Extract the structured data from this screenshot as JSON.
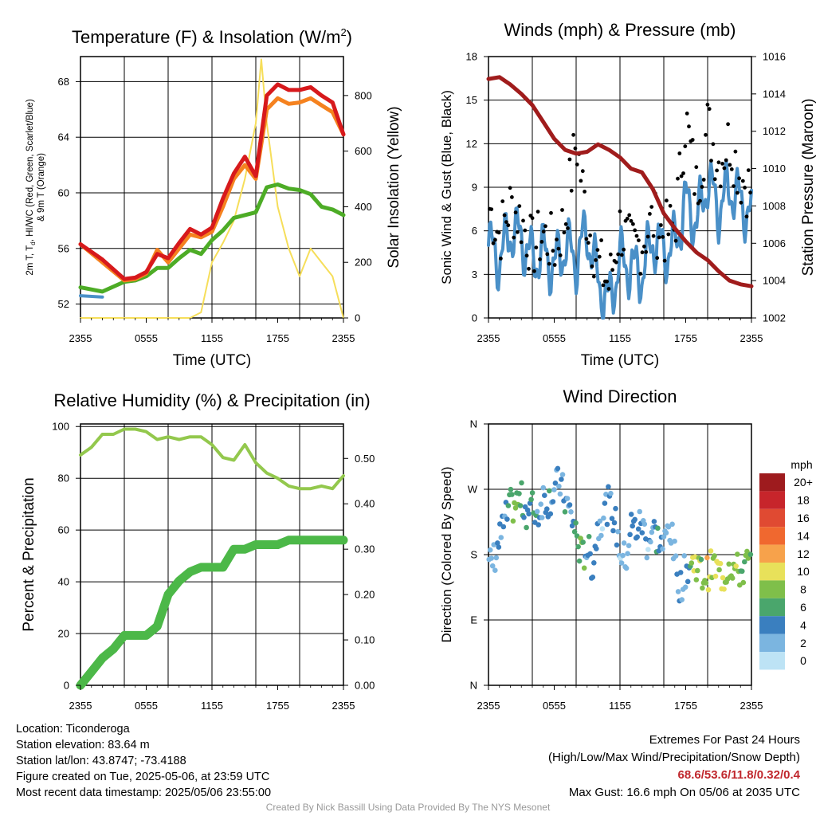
{
  "chart_data": [
    {
      "type": "line",
      "title_main": "Temperature (F) & Insolation (W/m",
      "title_sup": "2",
      "title_close": ")",
      "xlabel": "Time (UTC)",
      "ylabel_line1": "2m T, T",
      "ylabel_sub": "d",
      "ylabel_line1b": ", HI/WC (Red, Green, Scarlet/Blue)",
      "ylabel_line2": "& 9m T (Orange)",
      "y2label": "Solar Insolation (Yellow)",
      "x_ticks": [
        "2355",
        "0555",
        "1155",
        "1755",
        "2355"
      ],
      "y_ticks": [
        "52",
        "56",
        "60",
        "64",
        "68"
      ],
      "y2_ticks": [
        "0",
        "200",
        "400",
        "600",
        "800"
      ],
      "ylim": [
        51,
        69.8
      ],
      "y2lim": [
        0,
        940
      ],
      "x_hours": [
        0,
        2,
        4,
        5,
        6,
        7,
        8,
        9,
        10,
        11,
        12,
        13,
        14,
        15,
        16,
        17,
        18,
        19,
        20,
        21,
        22,
        23,
        24
      ],
      "series": [
        {
          "color": "#d7191c",
          "values": [
            56.3,
            55.2,
            53.8,
            53.9,
            54.3,
            55.6,
            55.3,
            56.4,
            57.4,
            57.0,
            57.5,
            59.6,
            61.4,
            62.6,
            61.2,
            67.0,
            67.8,
            67.4,
            67.4,
            67.6,
            67.0,
            66.5,
            64.2
          ]
        },
        {
          "color": "#f5821f",
          "values": [
            56.3,
            55.0,
            53.7,
            53.8,
            54.2,
            55.9,
            55.0,
            56.0,
            57.0,
            56.8,
            57.2,
            59.0,
            61.0,
            62.0,
            61.0,
            66.0,
            66.8,
            66.4,
            66.5,
            66.8,
            66.3,
            65.8,
            64.2
          ]
        },
        {
          "color": "#4dac26",
          "values": [
            53.2,
            52.9,
            53.6,
            53.7,
            54.0,
            54.6,
            54.6,
            55.3,
            55.9,
            55.6,
            56.6,
            57.3,
            58.2,
            58.4,
            58.6,
            60.4,
            60.6,
            60.3,
            60.2,
            59.9,
            59.0,
            58.8,
            58.4
          ]
        },
        {
          "color": "#4a90c8",
          "values": [
            52.6,
            52.5,
            null,
            null,
            null,
            null,
            null,
            null,
            null,
            null,
            null,
            null,
            null,
            null,
            null,
            null,
            null,
            null,
            null,
            null,
            null,
            null,
            null
          ]
        }
      ],
      "insolation": {
        "color": "#f6de5a",
        "x_hours": [
          0,
          4,
          8,
          10,
          11,
          12,
          13,
          14,
          15,
          16,
          16.5,
          17,
          18,
          19,
          20,
          21,
          22,
          23,
          24
        ],
        "values": [
          0,
          0,
          0,
          0,
          20,
          200,
          270,
          350,
          500,
          700,
          930,
          700,
          400,
          250,
          150,
          250,
          200,
          150,
          0
        ]
      }
    },
    {
      "type": "scatter",
      "title": "Winds (mph) & Pressure (mb)",
      "xlabel": "Time (UTC)",
      "ylabel": "Sonic Wind & Gust (Blue, Black)",
      "y2label": "Station Pressure (Maroon)",
      "x_ticks": [
        "2355",
        "0555",
        "1155",
        "1755",
        "2355"
      ],
      "y_ticks": [
        "0",
        "3",
        "6",
        "9",
        "12",
        "15",
        "18"
      ],
      "y2_ticks": [
        "1002",
        "1004",
        "1006",
        "1008",
        "1010",
        "1012",
        "1014",
        "1016"
      ],
      "ylim": [
        0,
        18
      ],
      "y2lim": [
        1002,
        1016
      ],
      "x_hours": [
        0,
        1,
        2,
        3,
        4,
        5,
        6,
        7,
        8,
        9,
        10,
        11,
        12,
        13,
        14,
        15,
        16,
        17,
        18,
        19,
        20,
        21,
        22,
        23,
        24
      ],
      "wind_values": [
        5.0,
        4.0,
        6.0,
        5.5,
        4.0,
        4.5,
        3.5,
        5.0,
        4.0,
        6.0,
        2.5,
        1.0,
        4.0,
        3.5,
        3.0,
        5.5,
        4.5,
        5.0,
        8.0,
        6.5,
        9.5,
        7.5,
        9.0,
        8.0,
        7.0
      ],
      "gust_values": [
        8.0,
        6.0,
        8.0,
        7.0,
        5.0,
        6.0,
        5.0,
        7.0,
        12.5,
        7.0,
        4.0,
        2.5,
        6.5,
        5.0,
        5.5,
        7.0,
        6.0,
        6.5,
        14.0,
        9.0,
        13.5,
        11.0,
        12.5,
        10.0,
        9.0
      ],
      "pressure_values": [
        1014.8,
        1014.9,
        1014.5,
        1014.0,
        1013.4,
        1012.5,
        1011.6,
        1011.0,
        1010.8,
        1010.9,
        1011.3,
        1011.0,
        1010.6,
        1010.0,
        1009.8,
        1008.9,
        1007.6,
        1006.8,
        1006.1,
        1005.5,
        1005.1,
        1004.5,
        1004.0,
        1003.8,
        1003.7
      ],
      "wind_color": "#4a90c8",
      "gust_color": "#000000",
      "pressure_color": "#a01c1c"
    },
    {
      "type": "line",
      "title": "Relative Humidity (%) & Precipitation (in)",
      "ylabel": "Percent & Precipitation",
      "x_ticks": [
        "2355",
        "0555",
        "1155",
        "1755",
        "2355"
      ],
      "y_ticks": [
        "0",
        "20",
        "40",
        "60",
        "80",
        "100"
      ],
      "y2_ticks": [
        "0.00",
        "0.10",
        "0.20",
        "0.30",
        "0.40",
        "0.50"
      ],
      "ylim": [
        0,
        101
      ],
      "y2lim": [
        0,
        0.576
      ],
      "x_hours": [
        0,
        1,
        2,
        3,
        4,
        5,
        6,
        7,
        8,
        9,
        10,
        11,
        12,
        13,
        14,
        15,
        16,
        17,
        18,
        19,
        20,
        21,
        22,
        23,
        24
      ],
      "rh_values": [
        89,
        92,
        97,
        97,
        99,
        99,
        98,
        95,
        96,
        95,
        96,
        96,
        93,
        88,
        87,
        93,
        86,
        82,
        80,
        77,
        76,
        76,
        77,
        76,
        81
      ],
      "precip_values": [
        0.0,
        0.03,
        0.06,
        0.08,
        0.11,
        0.11,
        0.11,
        0.13,
        0.2,
        0.23,
        0.25,
        0.26,
        0.26,
        0.26,
        0.3,
        0.3,
        0.31,
        0.31,
        0.31,
        0.32,
        0.32,
        0.32,
        0.32,
        0.32,
        0.32
      ],
      "rh_color": "#93c84d",
      "precip_color": "#4cb848"
    },
    {
      "type": "scatter",
      "title": "Wind Direction",
      "ylabel": "Direction (Colored By Speed)",
      "x_ticks": [
        "2355",
        "0555",
        "1155",
        "1755",
        "2355"
      ],
      "y_ticks": [
        "N",
        "E",
        "S",
        "W",
        "N"
      ],
      "ylim": [
        0,
        360
      ],
      "x_hours": [
        0,
        0.5,
        1,
        1.5,
        2,
        2.5,
        3,
        3.5,
        4,
        4.5,
        5,
        5.5,
        6,
        6.5,
        7,
        7.5,
        8,
        8.5,
        9,
        9.5,
        10,
        10.5,
        11,
        11.5,
        12,
        12.5,
        13,
        13.5,
        14,
        14.5,
        15,
        15.5,
        16,
        16.5,
        17,
        17.5,
        18,
        18.5,
        19,
        19.5,
        20,
        20.5,
        21,
        21.5,
        22,
        22.5,
        23,
        23.5,
        24
      ],
      "directions": [
        160,
        175,
        200,
        225,
        245,
        250,
        255,
        240,
        245,
        235,
        260,
        255,
        270,
        280,
        255,
        235,
        210,
        175,
        190,
        165,
        220,
        240,
        250,
        230,
        185,
        170,
        220,
        215,
        225,
        195,
        215,
        200,
        190,
        225,
        175,
        135,
        160,
        165,
        170,
        150,
        155,
        165,
        155,
        150,
        170,
        160,
        155,
        165,
        170
      ],
      "speed_values": [
        2,
        3,
        4,
        3,
        6,
        7,
        6,
        5,
        6,
        4,
        3,
        5,
        2,
        3,
        4,
        3,
        6,
        8,
        4,
        5,
        3,
        2,
        3,
        4,
        2,
        3,
        4,
        3,
        4,
        2,
        3,
        4,
        2,
        3,
        2,
        4,
        3,
        8,
        9,
        7,
        10,
        8,
        9,
        10,
        8,
        9,
        7,
        8,
        6
      ],
      "colorbar": {
        "label": "mph",
        "labels": [
          "20+",
          "18",
          "16",
          "14",
          "12",
          "10",
          "8",
          "6",
          "4",
          "2",
          "0"
        ],
        "colors": [
          "#9e1b1e",
          "#c7252b",
          "#e04a32",
          "#f0682f",
          "#f7a24b",
          "#e8e15a",
          "#7fbf4a",
          "#4aa66c",
          "#3a7fbf",
          "#7bb5e0",
          "#bde3f5"
        ]
      }
    }
  ],
  "info": {
    "location": "Location: Ticonderoga",
    "elevation": "Station elevation: 83.64 m",
    "latlon": "Station lat/lon: 43.8747; -73.4188",
    "created": "Figure created on Tue, 2025-05-06, at 23:59 UTC",
    "recent": "Most recent data timestamp: 2025/05/06 23:55:00"
  },
  "extremes": {
    "heading": "Extremes For Past 24 Hours",
    "subheading": "(High/Low/Max Wind/Precipitation/Snow Depth)",
    "values": "68.6/53.6/11.8/0.32/0.4",
    "max_gust": "Max Gust: 16.6 mph On 05/06 at 2035 UTC"
  },
  "credit": "Created By Nick Bassill Using Data Provided By The NYS Mesonet"
}
